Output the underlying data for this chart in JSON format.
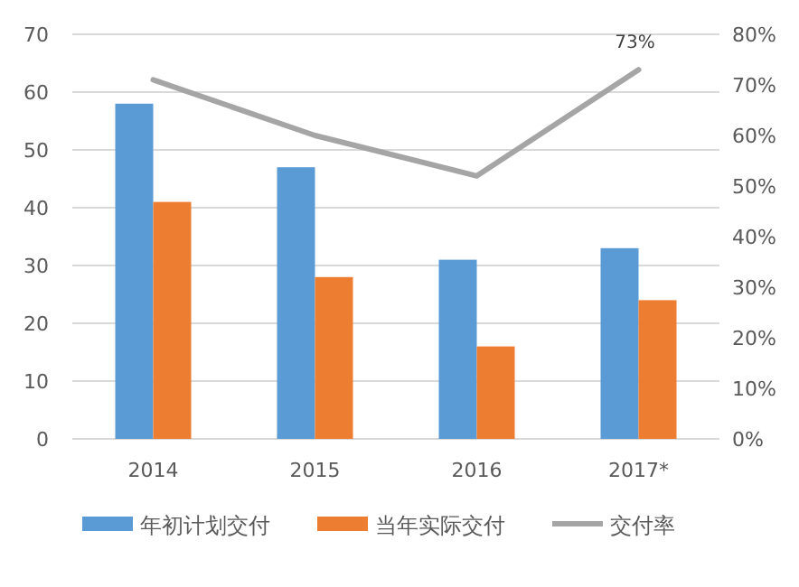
{
  "chart_data": {
    "type": "bar",
    "categories": [
      "2014",
      "2015",
      "2016",
      "2017*"
    ],
    "series": [
      {
        "name": "年初计划交付",
        "color": "#5b9bd5",
        "values": [
          58,
          47,
          31,
          33
        ]
      },
      {
        "name": "当年实际交付",
        "color": "#ed7d31",
        "values": [
          41,
          28,
          16,
          24
        ]
      },
      {
        "name": "交付率",
        "type": "line",
        "axis": "y2",
        "color": "#a5a5a5",
        "values": [
          71,
          60,
          52,
          73
        ],
        "value_labels": [
          null,
          null,
          null,
          "73%"
        ]
      }
    ],
    "ylim": [
      0,
      70
    ],
    "yticks": [
      0,
      10,
      20,
      30,
      40,
      50,
      60,
      70
    ],
    "y2lim": [
      0,
      80
    ],
    "y2ticks": [
      {
        "value": 0,
        "label": "0%"
      },
      {
        "value": 10,
        "label": "10%"
      },
      {
        "value": 20,
        "label": "20%"
      },
      {
        "value": 30,
        "label": "30%"
      },
      {
        "value": 40,
        "label": "40%"
      },
      {
        "value": 50,
        "label": "50%"
      },
      {
        "value": 60,
        "label": "60%"
      },
      {
        "value": 70,
        "label": "70%"
      },
      {
        "value": 80,
        "label": "80%"
      }
    ],
    "grid": "y",
    "legend": "bottom"
  }
}
